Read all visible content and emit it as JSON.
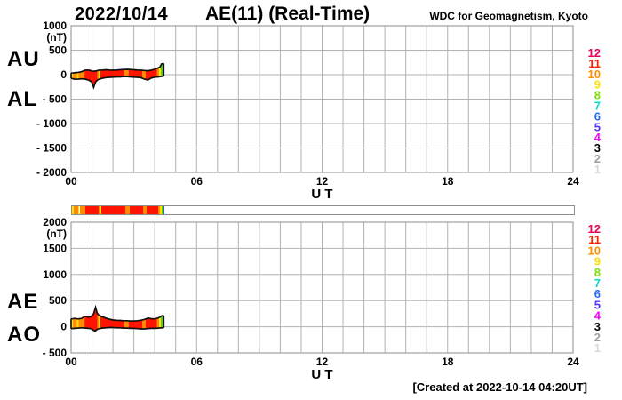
{
  "header": {
    "date": "2022/10/14",
    "title": "AE(11) (Real-Time)",
    "credit": "WDC for Geomagnetism, Kyoto"
  },
  "footer": {
    "created_note": "[Created at 2022-10-14 04:20UT]"
  },
  "axis": {
    "x_label": "U T",
    "unit_label": "(nT)",
    "x_tick_hours": [
      0,
      6,
      12,
      18,
      24
    ],
    "x_tick_labels": [
      "00",
      "06",
      "12",
      "18",
      "24"
    ],
    "hours_span": 24
  },
  "legend": {
    "station_numbers": [
      "12",
      "11",
      "10",
      "9",
      "8",
      "7",
      "6",
      "5",
      "4",
      "3",
      "2",
      "1"
    ],
    "station_colors": [
      "#E8005A",
      "#FF2000",
      "#FF8C00",
      "#FFE000",
      "#7CE000",
      "#00DCC8",
      "#2268FF",
      "#5A30FF",
      "#FF00FF",
      "#000000",
      "#A0A0A0",
      "#D8D8D8"
    ]
  },
  "colors": {
    "background": "#FFFFFF",
    "grid": "#B2B2B2",
    "frame": "#8E8E8E",
    "band_outline": "#111111",
    "fill_red": "#FF1400",
    "fill_orange": "#FF8C00",
    "fill_yellow": "#FFE000",
    "fill_green": "#4FD321",
    "fill_blue": "#3355EE"
  },
  "band_segments": [
    [
      0.0,
      0.09,
      "#FFE000"
    ],
    [
      0.09,
      0.28,
      "#FF8C00"
    ],
    [
      0.28,
      0.36,
      "#FFE000"
    ],
    [
      0.36,
      0.64,
      "#FF8C00"
    ],
    [
      0.64,
      1.26,
      "#FF1400"
    ],
    [
      1.26,
      1.33,
      "#FF8C00"
    ],
    [
      1.33,
      1.4,
      "#FFE000"
    ],
    [
      1.4,
      2.54,
      "#FF1400"
    ],
    [
      2.54,
      2.75,
      "#FF8C00"
    ],
    [
      2.75,
      3.41,
      "#FF1400"
    ],
    [
      3.41,
      3.57,
      "#FF8C00"
    ],
    [
      3.57,
      4.11,
      "#FF1400"
    ],
    [
      4.11,
      4.21,
      "#FF8C00"
    ],
    [
      4.21,
      4.29,
      "#FFE000"
    ],
    [
      4.29,
      4.39,
      "#4FD321"
    ],
    [
      4.39,
      4.43,
      "#3355EE"
    ]
  ],
  "chart_data": [
    {
      "type": "area",
      "name": "AU-AL band",
      "left_labels": [
        "AU",
        "AL"
      ],
      "ylim": [
        -2000,
        1000
      ],
      "ytick_values": [
        1000,
        500,
        0,
        -500,
        -1000,
        -1500,
        -2000
      ],
      "ytick_labels": [
        "1000",
        "500",
        "0",
        "- 500",
        "- 1000",
        "- 1500",
        "- 2000"
      ],
      "xlim_hours": [
        0,
        24
      ],
      "x_hours": [
        0,
        0.17,
        0.33,
        0.5,
        0.67,
        0.83,
        0.92,
        1.0,
        1.08,
        1.17,
        1.25,
        1.33,
        1.5,
        1.67,
        1.83,
        2.0,
        2.17,
        2.33,
        2.5,
        2.67,
        2.83,
        3.0,
        3.17,
        3.33,
        3.5,
        3.67,
        3.83,
        4.0,
        4.17,
        4.25,
        4.33,
        4.43
      ],
      "upper_series": {
        "name": "AU",
        "values": [
          30,
          40,
          45,
          60,
          90,
          95,
          85,
          75,
          70,
          75,
          80,
          90,
          95,
          100,
          95,
          90,
          95,
          100,
          105,
          110,
          105,
          100,
          95,
          90,
          85,
          80,
          90,
          110,
          140,
          160,
          220,
          230
        ]
      },
      "lower_series": {
        "name": "AL",
        "values": [
          -75,
          -95,
          -90,
          -85,
          -90,
          -110,
          -130,
          -160,
          -260,
          -150,
          -115,
          -95,
          -75,
          -60,
          -55,
          -50,
          -45,
          -45,
          -40,
          -40,
          -45,
          -50,
          -55,
          -60,
          -90,
          -110,
          -70,
          -50,
          -45,
          -40,
          -35,
          -30
        ]
      }
    },
    {
      "type": "area",
      "name": "AE-AO band",
      "left_labels": [
        "AE",
        "AO"
      ],
      "ylim": [
        -500,
        2000
      ],
      "ytick_values": [
        2000,
        1500,
        1000,
        500,
        0,
        -500
      ],
      "ytick_labels": [
        "2000",
        "1500",
        "1000",
        "500",
        "0",
        "- 500"
      ],
      "xlim_hours": [
        0,
        24
      ],
      "x_hours": [
        0,
        0.17,
        0.33,
        0.5,
        0.67,
        0.83,
        0.92,
        1.0,
        1.08,
        1.17,
        1.25,
        1.33,
        1.5,
        1.67,
        1.83,
        2.0,
        2.17,
        2.33,
        2.5,
        2.67,
        2.83,
        3.0,
        3.17,
        3.33,
        3.5,
        3.67,
        3.83,
        4.0,
        4.17,
        4.25,
        4.33,
        4.43
      ],
      "upper_series": {
        "name": "AE",
        "values": [
          150,
          160,
          150,
          160,
          200,
          185,
          190,
          215,
          250,
          370,
          260,
          220,
          190,
          165,
          145,
          130,
          125,
          120,
          115,
          115,
          110,
          110,
          115,
          125,
          140,
          165,
          155,
          150,
          170,
          185,
          210,
          215
        ]
      },
      "lower_series": {
        "name": "AO",
        "values": [
          -35,
          -30,
          -25,
          -20,
          -25,
          -30,
          -35,
          -45,
          -70,
          -80,
          -50,
          -35,
          -25,
          -20,
          -15,
          -15,
          -20,
          -20,
          -25,
          -25,
          -30,
          -30,
          -35,
          -40,
          -40,
          -35,
          -30,
          -30,
          -25,
          -22,
          -20,
          -20
        ]
      }
    }
  ],
  "strip": {
    "data_end_hour": 4.43
  }
}
